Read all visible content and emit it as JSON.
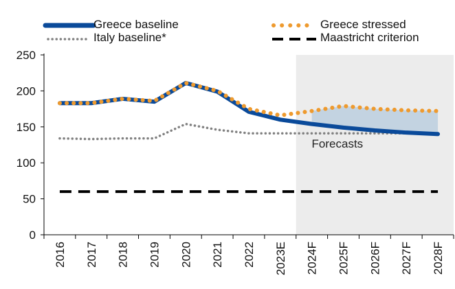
{
  "chart_data": {
    "type": "line",
    "categories": [
      "2016",
      "2017",
      "2018",
      "2019",
      "2020",
      "2021",
      "2022",
      "2023E",
      "2024F",
      "2025F",
      "2026F",
      "2027F",
      "2028F"
    ],
    "series": [
      {
        "name": "Greece baseline",
        "values": [
          183,
          183,
          189,
          185,
          211,
          199,
          171,
          160,
          154,
          149,
          145,
          142,
          140
        ]
      },
      {
        "name": "Greece stressed",
        "values": [
          183,
          183,
          189,
          186,
          211,
          200,
          175,
          166,
          172,
          179,
          175,
          173,
          172
        ]
      },
      {
        "name": "Italy baseline*",
        "values": [
          134,
          133,
          134,
          134,
          154,
          146,
          141,
          141,
          141,
          141,
          141,
          141,
          141
        ]
      },
      {
        "name": "Maastricht criterion",
        "values": [
          60,
          60,
          60,
          60,
          60,
          60,
          60,
          60,
          60,
          60,
          60,
          60,
          60
        ]
      }
    ],
    "forecast_start": "2024F",
    "annotation": "Forecasts",
    "ylim": [
      0,
      250
    ],
    "yticks": [
      0,
      50,
      100,
      150,
      200,
      250
    ],
    "grid": false,
    "legend_position": "top",
    "colors": {
      "greece_baseline": "#0a4a9a",
      "greece_stressed": "#ee9a2e",
      "italy_baseline": "#808080",
      "maastricht": "#000000",
      "forecast_bg": "#ececec",
      "band": "#c3d3e1"
    }
  }
}
